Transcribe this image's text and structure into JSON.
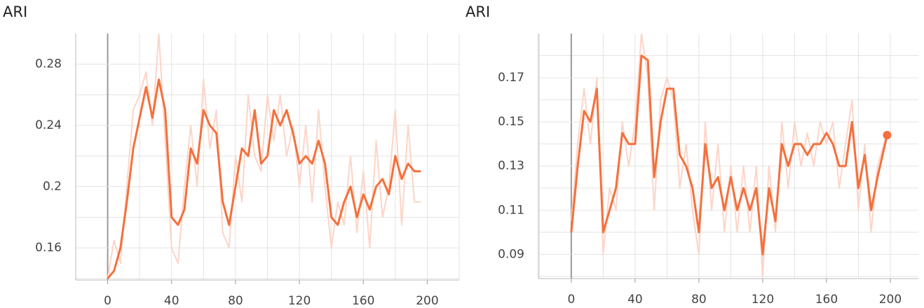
{
  "chart_data": [
    {
      "type": "line",
      "title": "ARI",
      "x": [
        0,
        4,
        8,
        12,
        16,
        20,
        24,
        28,
        32,
        36,
        40,
        44,
        48,
        52,
        56,
        60,
        64,
        68,
        72,
        76,
        80,
        84,
        88,
        92,
        96,
        100,
        104,
        108,
        112,
        116,
        120,
        124,
        128,
        132,
        136,
        140,
        144,
        148,
        152,
        156,
        160,
        164,
        168,
        172,
        176,
        180,
        184,
        188,
        192,
        196
      ],
      "series": [
        {
          "color": "#fcd5c8",
          "values": [
            0.14,
            0.165,
            0.15,
            0.2,
            0.25,
            0.26,
            0.275,
            0.24,
            0.3,
            0.23,
            0.16,
            0.15,
            0.2,
            0.24,
            0.2,
            0.27,
            0.225,
            0.25,
            0.17,
            0.16,
            0.22,
            0.19,
            0.26,
            0.22,
            0.21,
            0.26,
            0.23,
            0.26,
            0.22,
            0.24,
            0.2,
            0.24,
            0.19,
            0.25,
            0.2,
            0.16,
            0.19,
            0.175,
            0.22,
            0.17,
            0.21,
            0.16,
            0.23,
            0.18,
            0.2,
            0.25,
            0.175,
            0.24,
            0.19,
            0.19
          ]
        },
        {
          "color": "#f4703c",
          "values": [
            0.14,
            0.145,
            0.16,
            0.19,
            0.225,
            0.245,
            0.265,
            0.245,
            0.27,
            0.25,
            0.18,
            0.175,
            0.185,
            0.225,
            0.215,
            0.25,
            0.24,
            0.235,
            0.19,
            0.175,
            0.2,
            0.225,
            0.22,
            0.25,
            0.215,
            0.22,
            0.25,
            0.24,
            0.25,
            0.235,
            0.215,
            0.22,
            0.215,
            0.23,
            0.215,
            0.18,
            0.175,
            0.19,
            0.2,
            0.18,
            0.195,
            0.185,
            0.2,
            0.205,
            0.195,
            0.22,
            0.205,
            0.215,
            0.21,
            0.21
          ]
        }
      ],
      "xlim": [
        -20,
        220
      ],
      "xticks": [
        0,
        40,
        80,
        120,
        160,
        200
      ],
      "ylim": [
        0.139,
        0.3
      ],
      "yticks": [
        0.16,
        0.2,
        0.24,
        0.28
      ],
      "grid": true
    },
    {
      "type": "line",
      "title": "ARI",
      "x": [
        0,
        4,
        8,
        12,
        16,
        20,
        24,
        28,
        32,
        36,
        40,
        44,
        48,
        52,
        56,
        60,
        64,
        68,
        72,
        76,
        80,
        84,
        88,
        92,
        96,
        100,
        104,
        108,
        112,
        116,
        120,
        124,
        128,
        132,
        136,
        140,
        144,
        148,
        152,
        156,
        160,
        164,
        168,
        172,
        176,
        180,
        184,
        188,
        192,
        198
      ],
      "series": [
        {
          "color": "#fcd5c8",
          "values": [
            0.105,
            0.14,
            0.165,
            0.14,
            0.17,
            0.09,
            0.12,
            0.11,
            0.15,
            0.13,
            0.15,
            0.19,
            0.17,
            0.11,
            0.16,
            0.17,
            0.16,
            0.12,
            0.14,
            0.11,
            0.09,
            0.15,
            0.11,
            0.14,
            0.1,
            0.13,
            0.1,
            0.13,
            0.1,
            0.13,
            0.08,
            0.13,
            0.1,
            0.15,
            0.12,
            0.15,
            0.13,
            0.145,
            0.13,
            0.15,
            0.14,
            0.15,
            0.12,
            0.14,
            0.16,
            0.11,
            0.14,
            0.1,
            0.13,
            0.145
          ]
        },
        {
          "color": "#f4703c",
          "values": [
            0.1,
            0.13,
            0.155,
            0.15,
            0.165,
            0.1,
            0.11,
            0.12,
            0.145,
            0.14,
            0.14,
            0.18,
            0.178,
            0.125,
            0.15,
            0.165,
            0.165,
            0.135,
            0.13,
            0.12,
            0.1,
            0.14,
            0.12,
            0.125,
            0.11,
            0.125,
            0.11,
            0.12,
            0.11,
            0.12,
            0.09,
            0.12,
            0.105,
            0.14,
            0.13,
            0.14,
            0.14,
            0.135,
            0.14,
            0.14,
            0.145,
            0.14,
            0.13,
            0.13,
            0.15,
            0.12,
            0.135,
            0.11,
            0.125,
            0.144
          ]
        }
      ],
      "xlim": [
        -20.6,
        217.6
      ],
      "xticks": [
        0,
        40,
        80,
        120,
        160,
        200
      ],
      "ylim": [
        0.079,
        0.19
      ],
      "yticks": [
        0.09,
        0.11,
        0.13,
        0.15,
        0.17
      ],
      "grid": true
    }
  ]
}
